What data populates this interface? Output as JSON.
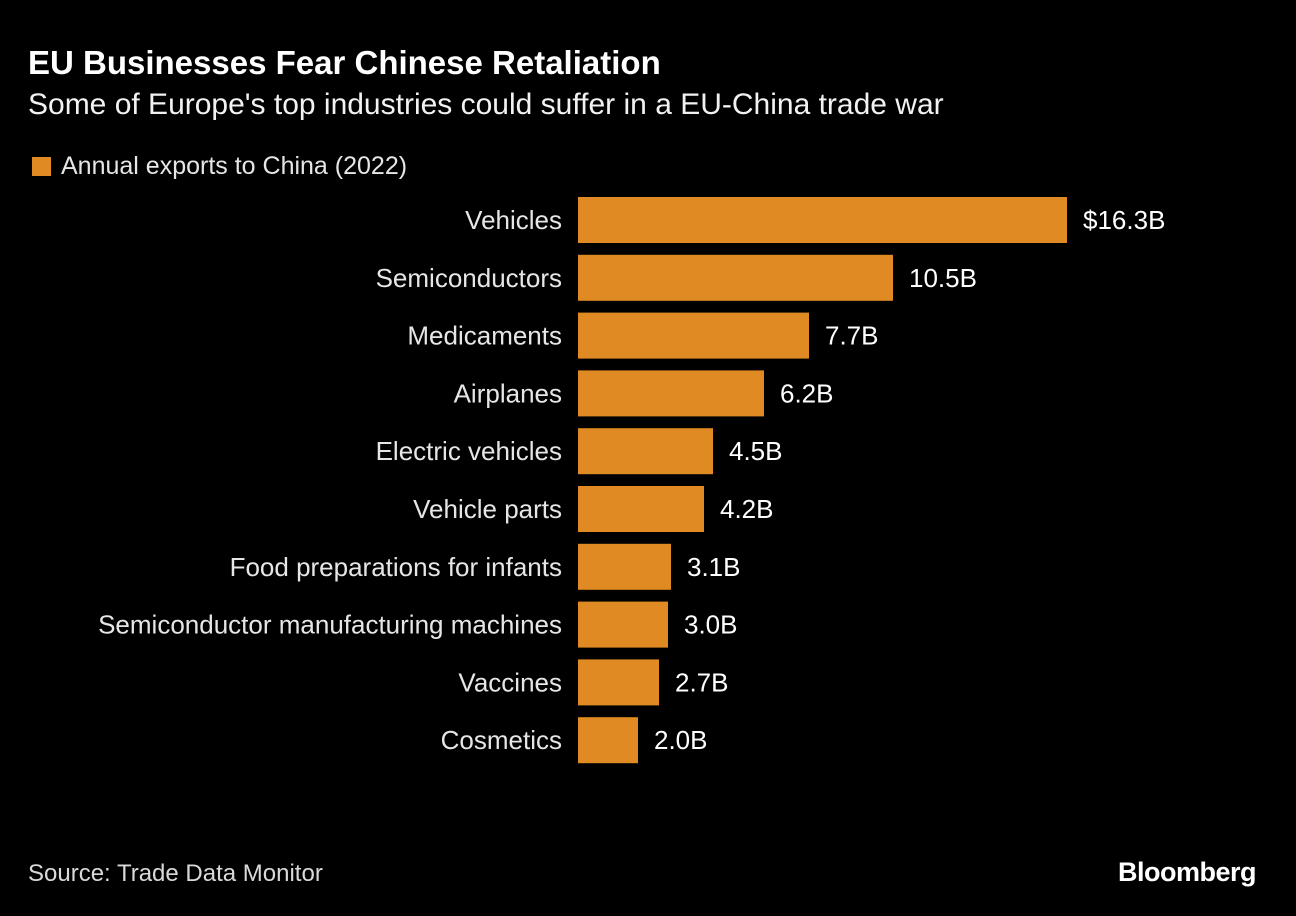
{
  "header": {
    "title": "EU Businesses Fear Chinese Retaliation",
    "subtitle": "Some of Europe's top industries could suffer in a EU-China trade war"
  },
  "footer": {
    "source": "Source: Trade Data Monitor",
    "logo": "Bloomberg"
  },
  "colors": {
    "bar": "#E08A23",
    "background": "#000000",
    "text": "#ffffff"
  },
  "chart_data": {
    "type": "bar",
    "orientation": "horizontal",
    "title": "EU Businesses Fear Chinese Retaliation",
    "subtitle": "Some of Europe's top industries could suffer in a EU-China trade war",
    "legend": [
      "Annual exports to China (2022)"
    ],
    "legend_placement": "top-left",
    "categories": [
      "Vehicles",
      "Semiconductors",
      "Medicaments",
      "Airplanes",
      "Electric vehicles",
      "Vehicle parts",
      "Food preparations for infants",
      "Semiconductor manufacturing machines",
      "Vaccines",
      "Cosmetics"
    ],
    "values": [
      16.3,
      10.5,
      7.7,
      6.2,
      4.5,
      4.2,
      3.1,
      3.0,
      2.7,
      2.0
    ],
    "labels": [
      "$16.3B",
      "10.5B",
      "7.7B",
      "6.2B",
      "4.5B",
      "4.2B",
      "3.1B",
      "3.0B",
      "2.7B",
      "2.0B"
    ],
    "unit": "USD billions",
    "xlim": [
      0,
      16.3
    ],
    "grid": false
  }
}
